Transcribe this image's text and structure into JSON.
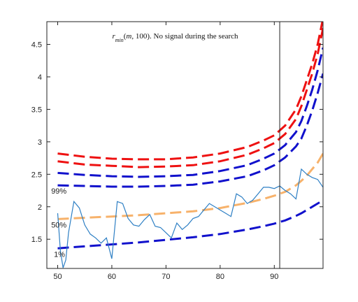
{
  "chart_data": {
    "type": "line",
    "title_parts": [
      {
        "text": "r",
        "style": "italic"
      },
      {
        "text": "min",
        "style": "italic-sub"
      },
      {
        "text": "(",
        "style": "normal"
      },
      {
        "text": "m",
        "style": "italic"
      },
      {
        "text": ", 100). No signal during the search",
        "style": "normal"
      }
    ],
    "xlim": [
      48,
      99
    ],
    "ylim": [
      1.05,
      4.85
    ],
    "xticks": [
      50,
      60,
      70,
      80,
      90
    ],
    "yticks": [
      1.5,
      2,
      2.5,
      3,
      3.5,
      4,
      4.5
    ],
    "ytick_labels": [
      "1.5",
      "2",
      "2.5",
      "3",
      "3.5",
      "4",
      "4.5"
    ],
    "vline_x": 91,
    "percentile_labels": [
      {
        "text": "99%",
        "x": 48.8,
        "y": 2.2
      },
      {
        "text": "50%",
        "x": 48.8,
        "y": 1.68
      },
      {
        "text": "1%",
        "x": 49.3,
        "y": 1.23
      }
    ],
    "dashed_series": [
      {
        "color": "#ee1111",
        "x": [
          50,
          55,
          60,
          65,
          70,
          75,
          80,
          85,
          88,
          90,
          92,
          94,
          95,
          96,
          97,
          98,
          99
        ],
        "y": [
          2.82,
          2.77,
          2.74,
          2.73,
          2.73,
          2.76,
          2.82,
          2.92,
          3.02,
          3.1,
          3.25,
          3.5,
          3.7,
          3.95,
          4.2,
          4.5,
          4.9
        ]
      },
      {
        "color": "#ee1111",
        "x": [
          50,
          55,
          60,
          65,
          70,
          75,
          80,
          85,
          88,
          90,
          92,
          94,
          95,
          96,
          97,
          98,
          99
        ],
        "y": [
          2.7,
          2.65,
          2.63,
          2.61,
          2.62,
          2.64,
          2.7,
          2.8,
          2.9,
          2.98,
          3.12,
          3.35,
          3.55,
          3.8,
          4.05,
          4.35,
          4.75
        ]
      },
      {
        "color": "#1111cc",
        "x": [
          50,
          55,
          60,
          65,
          70,
          75,
          80,
          85,
          88,
          90,
          92,
          94,
          95,
          96,
          97,
          98,
          99
        ],
        "y": [
          2.52,
          2.49,
          2.47,
          2.46,
          2.47,
          2.49,
          2.55,
          2.64,
          2.74,
          2.82,
          2.95,
          3.15,
          3.32,
          3.55,
          3.8,
          4.1,
          4.45
        ]
      },
      {
        "color": "#1111cc",
        "x": [
          50,
          55,
          60,
          65,
          70,
          75,
          80,
          85,
          88,
          90,
          92,
          94,
          95,
          96,
          97,
          98,
          99
        ],
        "y": [
          2.33,
          2.32,
          2.31,
          2.31,
          2.32,
          2.34,
          2.39,
          2.47,
          2.56,
          2.64,
          2.76,
          2.93,
          3.05,
          3.25,
          3.48,
          3.75,
          4.05
        ]
      },
      {
        "color": "#f7b26b",
        "x": [
          50,
          55,
          60,
          65,
          70,
          75,
          80,
          85,
          88,
          90,
          92,
          94,
          95,
          96,
          97,
          98,
          99
        ],
        "y": [
          1.81,
          1.83,
          1.85,
          1.87,
          1.9,
          1.93,
          1.98,
          2.06,
          2.12,
          2.17,
          2.23,
          2.33,
          2.4,
          2.48,
          2.58,
          2.68,
          2.82
        ]
      },
      {
        "color": "#1111cc",
        "x": [
          50,
          55,
          60,
          65,
          70,
          75,
          80,
          85,
          88,
          90,
          92,
          94,
          95,
          96,
          97,
          98,
          99
        ],
        "y": [
          1.36,
          1.39,
          1.42,
          1.45,
          1.49,
          1.53,
          1.58,
          1.65,
          1.7,
          1.74,
          1.79,
          1.86,
          1.9,
          1.95,
          2.0,
          2.05,
          2.1
        ]
      }
    ],
    "observed": {
      "color": "#2d7fc4",
      "x": [
        50,
        50.5,
        51,
        51.5,
        52,
        53,
        54,
        55,
        56,
        57,
        58,
        59,
        60,
        61,
        62,
        63,
        64,
        65,
        66,
        67,
        68,
        69,
        70,
        71,
        72,
        73,
        74,
        75,
        76,
        77,
        78,
        79,
        80,
        81,
        82,
        83,
        84,
        85,
        86,
        87,
        88,
        89,
        90,
        91,
        92,
        93,
        94,
        95,
        96,
        97,
        98,
        99
      ],
      "y": [
        1.9,
        1.32,
        1.06,
        1.18,
        1.6,
        2.08,
        1.98,
        1.72,
        1.58,
        1.52,
        1.44,
        1.52,
        1.2,
        2.08,
        2.05,
        1.82,
        1.72,
        1.7,
        1.8,
        1.88,
        1.7,
        1.68,
        1.6,
        1.52,
        1.75,
        1.65,
        1.72,
        1.82,
        1.85,
        1.95,
        2.05,
        2.0,
        1.95,
        1.9,
        1.85,
        2.2,
        2.15,
        2.05,
        2.1,
        2.2,
        2.3,
        2.3,
        2.28,
        2.32,
        2.25,
        2.2,
        2.12,
        2.58,
        2.5,
        2.45,
        2.42,
        2.3
      ]
    }
  }
}
